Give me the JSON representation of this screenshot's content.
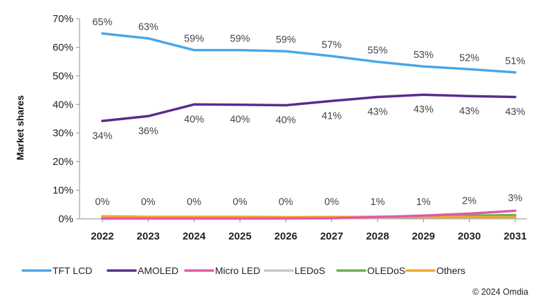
{
  "chart_data": {
    "type": "line",
    "title": "",
    "xlabel": "",
    "ylabel": "Market shares",
    "ylim": [
      0,
      70
    ],
    "yticks": [
      "0%",
      "10%",
      "20%",
      "30%",
      "40%",
      "50%",
      "60%",
      "70%"
    ],
    "grid": false,
    "legend_position": "bottom",
    "categories": [
      "2022",
      "2023",
      "2024",
      "2025",
      "2026",
      "2027",
      "2028",
      "2029",
      "2030",
      "2031"
    ],
    "series": [
      {
        "name": "TFT LCD",
        "color": "#4aa6e8",
        "values": [
          64.8,
          63.1,
          59.0,
          59.0,
          58.6,
          56.9,
          54.9,
          53.3,
          52.3,
          51.2
        ],
        "labels": [
          "65%",
          "63%",
          "59%",
          "59%",
          "59%",
          "57%",
          "55%",
          "53%",
          "52%",
          "51%"
        ]
      },
      {
        "name": "AMOLED",
        "color": "#5b2a8e",
        "values": [
          34.2,
          35.9,
          40.0,
          39.9,
          39.7,
          41.2,
          42.6,
          43.4,
          42.9,
          42.6
        ],
        "labels": [
          "34%",
          "36%",
          "40%",
          "40%",
          "40%",
          "41%",
          "43%",
          "43%",
          "43%",
          "43%"
        ]
      },
      {
        "name": "Micro LED",
        "color": "#e05aa8",
        "values": [
          0.1,
          0.1,
          0.1,
          0.1,
          0.1,
          0.2,
          0.6,
          1.1,
          1.8,
          2.8
        ],
        "labels": [
          "0%",
          "0%",
          "0%",
          "0%",
          "0%",
          "0%",
          "1%",
          "1%",
          "2%",
          "3%"
        ]
      },
      {
        "name": "LEDoS",
        "color": "#c8c8c8",
        "values": [
          0.2,
          0.2,
          0.2,
          0.2,
          0.2,
          0.3,
          0.4,
          0.6,
          0.8,
          1.0
        ],
        "labels": []
      },
      {
        "name": "OLEDoS",
        "color": "#6ab04c",
        "values": [
          0.3,
          0.3,
          0.4,
          0.5,
          0.5,
          0.6,
          0.7,
          0.9,
          1.1,
          1.3
        ],
        "labels": []
      },
      {
        "name": "Others",
        "color": "#f0a830",
        "values": [
          0.9,
          0.7,
          0.7,
          0.7,
          0.6,
          0.6,
          0.6,
          0.6,
          0.6,
          0.6
        ],
        "labels": []
      }
    ]
  },
  "footer": {
    "copyright": "© 2024 Omdia"
  }
}
